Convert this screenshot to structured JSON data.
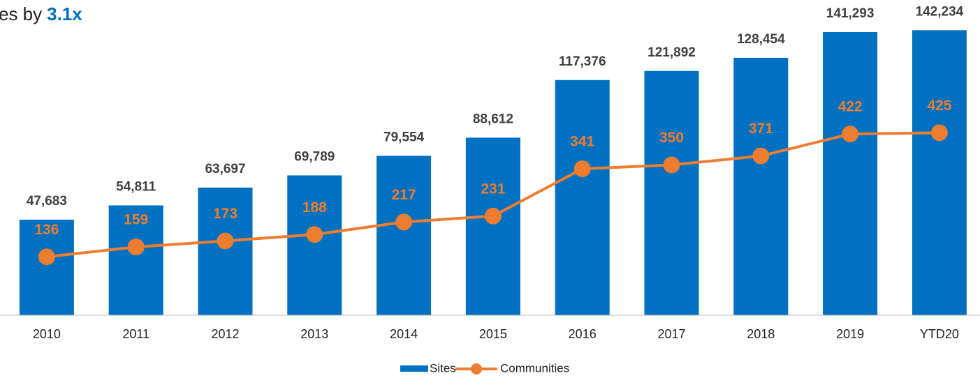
{
  "chart_data": {
    "type": "bar_line",
    "title": "es by",
    "title_highlight": "3.1x",
    "categories": [
      "2010",
      "2011",
      "2012",
      "2013",
      "2014",
      "2015",
      "2016",
      "2017",
      "2018",
      "2019",
      "YTD20"
    ],
    "series": [
      {
        "name": "Sites",
        "color": "#0070c0",
        "type": "bar",
        "values": [
          47683,
          54811,
          63697,
          69789,
          79554,
          88612,
          117376,
          121892,
          128454,
          141293,
          142234
        ],
        "value_labels": [
          "47,683",
          "54,811",
          "63,697",
          "69,789",
          "79,554",
          "88,612",
          "117,376",
          "121,892",
          "128,454",
          "141,293",
          "142,234"
        ]
      },
      {
        "name": "Communities",
        "color": "#ed7d31",
        "type": "line",
        "axis": "y2",
        "values": [
          136,
          159,
          173,
          188,
          217,
          231,
          341,
          350,
          371,
          422,
          425
        ]
      }
    ],
    "ylim": [
      0,
      150000
    ],
    "y2lim": [
      0,
      700
    ]
  }
}
